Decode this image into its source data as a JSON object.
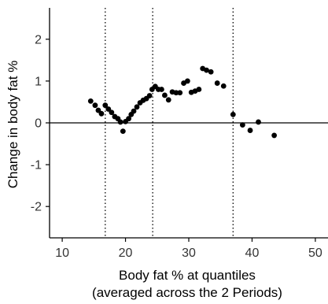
{
  "chart_data": {
    "type": "scatter",
    "title": "",
    "xlabel": [
      "Body fat % at quantiles",
      "(averaged across the 2 Periods)"
    ],
    "ylabel": "Change in body fat %",
    "xlim": [
      8,
      52
    ],
    "ylim": [
      -2.75,
      2.75
    ],
    "xticks": [
      10,
      20,
      30,
      40,
      50
    ],
    "yticks": [
      2,
      1,
      0,
      -1,
      -2
    ],
    "grid": false,
    "reference_lines": {
      "horizontal": [
        0
      ],
      "vertical_dotted": [
        16.8,
        24.3,
        37.0
      ]
    },
    "colors": {
      "points": "#000000",
      "axes": "#000000"
    },
    "points": [
      {
        "x": 14.5,
        "y": 0.52
      },
      {
        "x": 15.2,
        "y": 0.42
      },
      {
        "x": 15.7,
        "y": 0.3
      },
      {
        "x": 16.2,
        "y": 0.22
      },
      {
        "x": 16.8,
        "y": 0.42
      },
      {
        "x": 17.3,
        "y": 0.33
      },
      {
        "x": 17.8,
        "y": 0.25
      },
      {
        "x": 18.3,
        "y": 0.15
      },
      {
        "x": 18.8,
        "y": 0.1
      },
      {
        "x": 19.2,
        "y": 0.02
      },
      {
        "x": 19.6,
        "y": -0.2
      },
      {
        "x": 20.0,
        "y": 0.03
      },
      {
        "x": 20.5,
        "y": 0.1
      },
      {
        "x": 20.9,
        "y": 0.2
      },
      {
        "x": 21.3,
        "y": 0.28
      },
      {
        "x": 21.8,
        "y": 0.38
      },
      {
        "x": 22.3,
        "y": 0.48
      },
      {
        "x": 22.8,
        "y": 0.54
      },
      {
        "x": 23.3,
        "y": 0.58
      },
      {
        "x": 23.8,
        "y": 0.65
      },
      {
        "x": 24.2,
        "y": 0.8
      },
      {
        "x": 24.7,
        "y": 0.87
      },
      {
        "x": 25.2,
        "y": 0.8
      },
      {
        "x": 25.7,
        "y": 0.8
      },
      {
        "x": 26.2,
        "y": 0.66
      },
      {
        "x": 26.8,
        "y": 0.55
      },
      {
        "x": 27.4,
        "y": 0.74
      },
      {
        "x": 28.0,
        "y": 0.72
      },
      {
        "x": 28.6,
        "y": 0.72
      },
      {
        "x": 29.2,
        "y": 0.95
      },
      {
        "x": 29.8,
        "y": 1.0
      },
      {
        "x": 30.4,
        "y": 0.73
      },
      {
        "x": 31.0,
        "y": 0.76
      },
      {
        "x": 31.6,
        "y": 0.8
      },
      {
        "x": 32.2,
        "y": 1.3
      },
      {
        "x": 32.8,
        "y": 1.26
      },
      {
        "x": 33.5,
        "y": 1.22
      },
      {
        "x": 34.5,
        "y": 0.95
      },
      {
        "x": 35.5,
        "y": 0.88
      },
      {
        "x": 37.0,
        "y": 0.2
      },
      {
        "x": 38.5,
        "y": -0.05
      },
      {
        "x": 39.7,
        "y": -0.18
      },
      {
        "x": 41.0,
        "y": 0.02
      },
      {
        "x": 43.5,
        "y": -0.3
      }
    ]
  }
}
